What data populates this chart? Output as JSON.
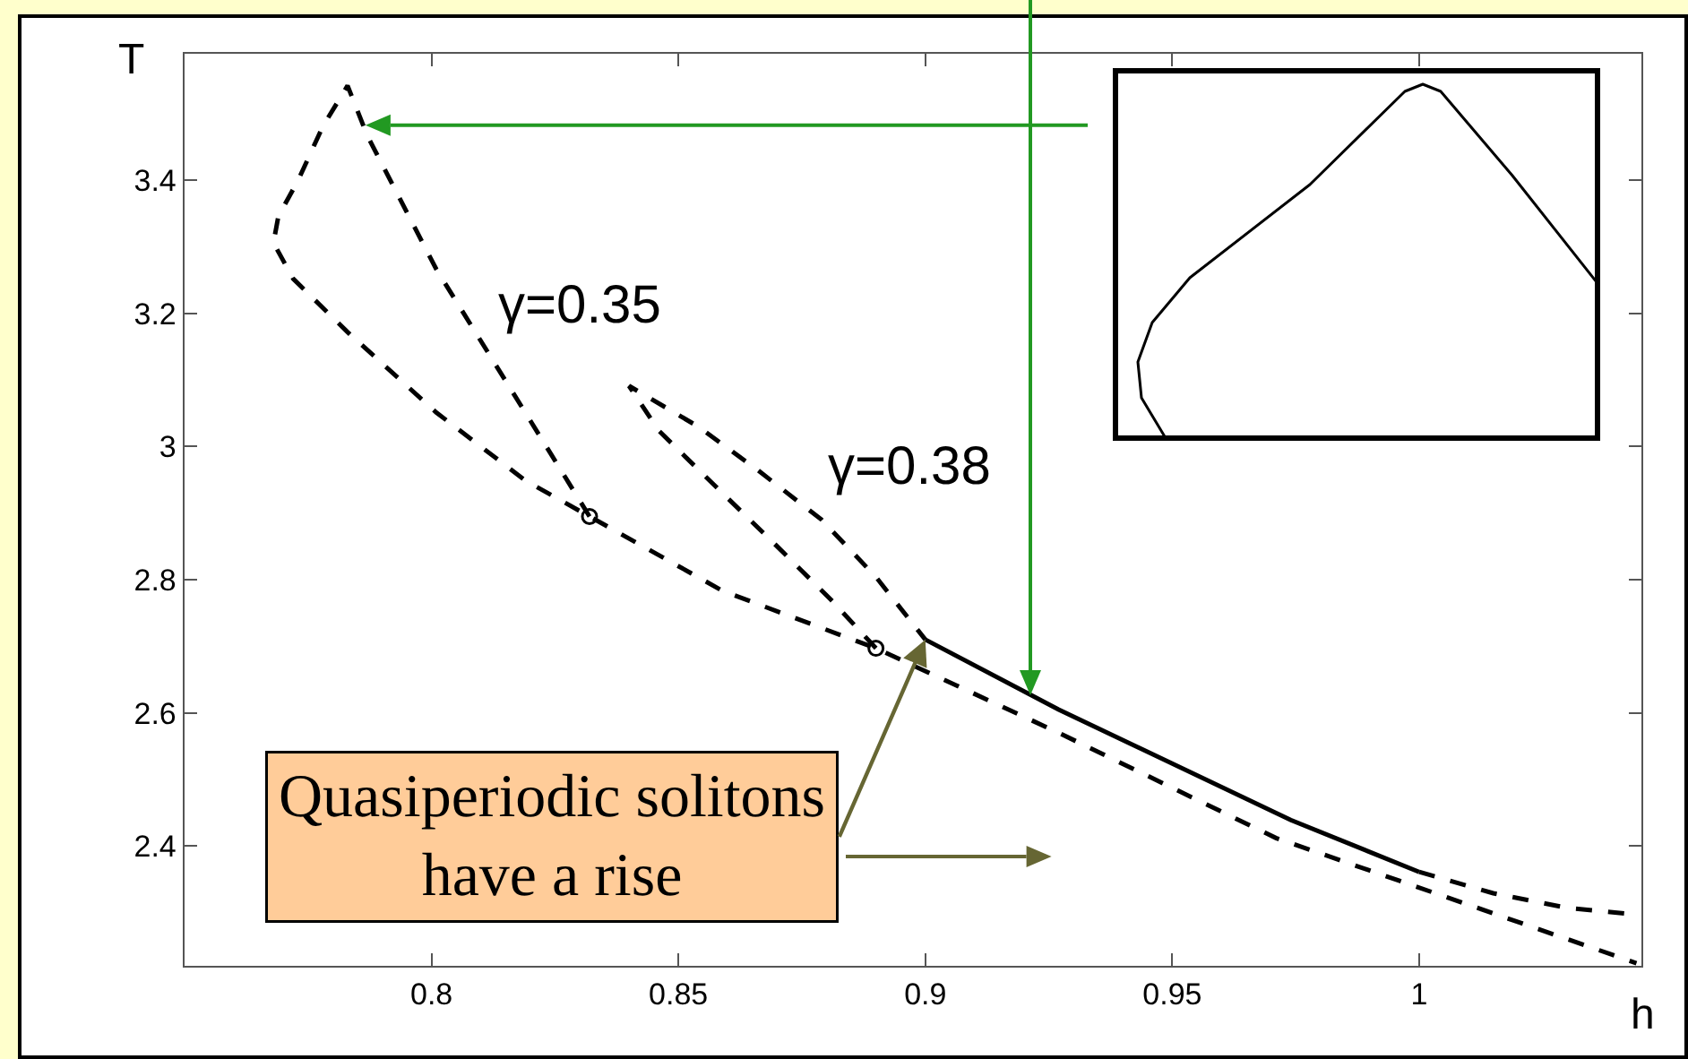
{
  "chart_data": {
    "type": "line",
    "xlabel": "h",
    "ylabel": "T",
    "xlim": [
      0.75,
      1.045
    ],
    "xticks": [
      0.8,
      0.85,
      0.9,
      0.95,
      1
    ],
    "ylim": [
      2.22,
      3.59
    ],
    "yticks": [
      2.4,
      2.6,
      2.8,
      3,
      3.2,
      3.4
    ],
    "grid": false,
    "line_style": "dashed",
    "annotations": [
      {
        "text": "Quasiperiodic solitons\nhave a rise",
        "x": 0.9,
        "y": 2.71
      }
    ],
    "series": [
      {
        "name": "γ=0.35",
        "color": "#000000",
        "x": [
          0.832,
          0.819,
          0.801,
          0.787,
          0.783,
          0.778,
          0.773,
          0.769,
          0.768,
          0.772,
          0.783,
          0.801,
          0.819,
          0.832,
          0.859,
          0.89,
          0.927,
          0.971,
          0.999,
          1.044
        ],
        "values": [
          2.895,
          3.051,
          3.266,
          3.467,
          3.542,
          3.481,
          3.4,
          3.346,
          3.306,
          3.252,
          3.172,
          3.051,
          2.949,
          2.895,
          2.783,
          2.697,
          2.57,
          2.412,
          2.34,
          2.224
        ]
      },
      {
        "name": "γ=0.38",
        "color": "#000000",
        "x": [
          0.89,
          0.881,
          0.87,
          0.857,
          0.846,
          0.84,
          0.854,
          0.866,
          0.879,
          0.89,
          0.9
        ],
        "values": [
          2.697,
          2.769,
          2.85,
          2.944,
          3.024,
          3.091,
          3.03,
          2.965,
          2.89,
          2.804,
          2.71
        ]
      },
      {
        "color": "#000000",
        "line_style": "solid",
        "x": [
          0.9,
          0.927,
          0.974,
          1.0
        ],
        "values": [
          2.71,
          2.605,
          2.439,
          2.361
        ]
      },
      {
        "color": "#000000",
        "x": [
          1.0,
          1.015,
          1.03,
          1.044
        ],
        "values": [
          2.361,
          2.329,
          2.307,
          2.297
        ]
      },
      {
        "type": "scatter",
        "color": "#000000",
        "marker": "circle",
        "x": [
          0.832,
          0.89
        ],
        "values": [
          2.895,
          2.697
        ]
      }
    ]
  }
}
